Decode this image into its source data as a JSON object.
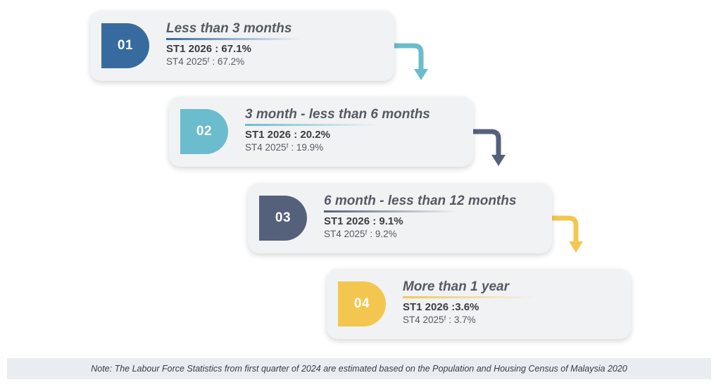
{
  "colors": {
    "step1": "#376b9f",
    "step2": "#6bbccd",
    "step3": "#55617b",
    "step4": "#f3c74f"
  },
  "steps": [
    {
      "number": "01",
      "title": "Less than 3 months",
      "primary": "ST1 2026 : 67.1%",
      "secondary": "ST4 2025ᶠ : 67.2%"
    },
    {
      "number": "02",
      "title": "3 month - less than 6 months",
      "primary": "ST1 2026 : 20.2%",
      "secondary": "ST4 2025ᶠ : 19.9%"
    },
    {
      "number": "03",
      "title": "6 month - less than 12 months",
      "primary": "ST1 2026 : 9.1%",
      "secondary": "ST4 2025ᶠ : 9.2%"
    },
    {
      "number": "04",
      "title": "More than 1 year",
      "primary": "ST1 2026 :3.6%",
      "secondary": "ST4 2025ᶠ : 3.7%"
    }
  ],
  "note": "Note: The Labour Force Statistics from first quarter of 2024 are estimated based on the Population and Housing Census of Malaysia 2020"
}
